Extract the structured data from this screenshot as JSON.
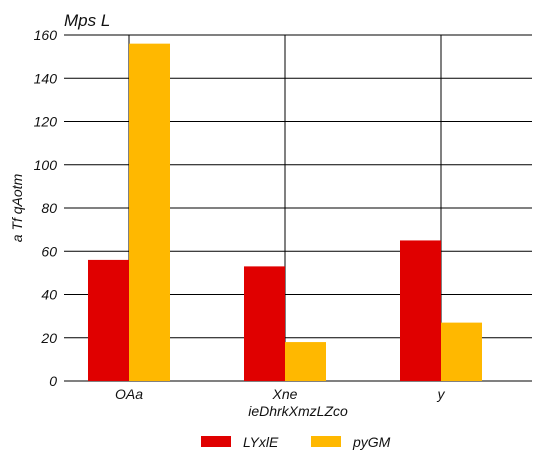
{
  "chart_data": {
    "type": "bar",
    "title": "Mps L",
    "xlabel": "ieDhrkXmzLZco",
    "ylabel": "a Tf qAotm",
    "categories": [
      "OAa",
      "Xne",
      "y"
    ],
    "series": [
      {
        "name": "LYxlE",
        "color": "#e00000",
        "values": [
          56,
          53,
          65
        ]
      },
      {
        "name": "pyGM",
        "color": "#ffb800",
        "values": [
          156,
          18,
          27
        ]
      }
    ],
    "ylim": [
      0,
      160
    ],
    "yticks": [
      0,
      20,
      40,
      60,
      80,
      100,
      120,
      140,
      160
    ],
    "grid": true,
    "legend_position": "bottom-center"
  }
}
